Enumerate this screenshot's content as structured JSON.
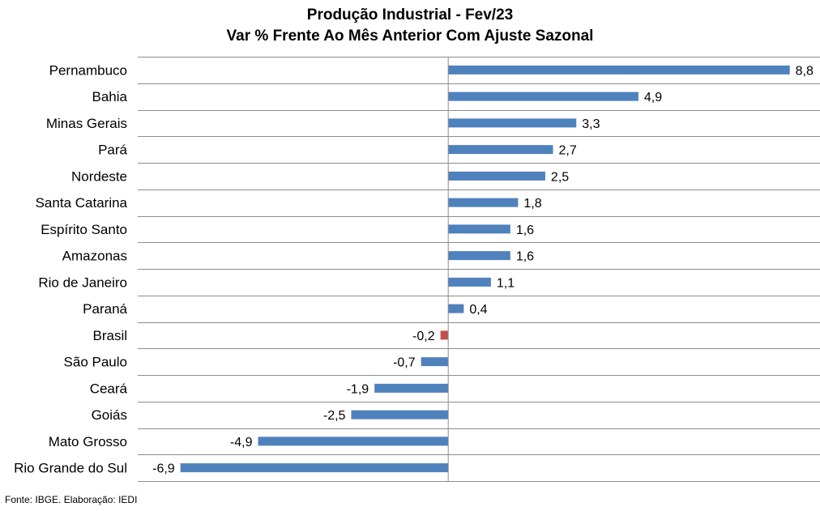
{
  "chart_data": {
    "type": "bar",
    "orientation": "horizontal",
    "title": "Produção Industrial - Fev/23",
    "subtitle": "Var % Frente Ao Mês Anterior Com Ajuste Sazonal",
    "categories": [
      "Pernambuco",
      "Bahia",
      "Minas Gerais",
      "Pará",
      "Nordeste",
      "Santa Catarina",
      "Espírito Santo",
      "Amazonas",
      "Rio de Janeiro",
      "Paraná",
      "Brasil",
      "São Paulo",
      "Ceará",
      "Goiás",
      "Mato Grosso",
      "Rio Grande do Sul"
    ],
    "values": [
      8.8,
      4.9,
      3.3,
      2.7,
      2.5,
      1.8,
      1.6,
      1.6,
      1.1,
      0.4,
      -0.2,
      -0.7,
      -1.9,
      -2.5,
      -4.9,
      -6.9
    ],
    "data_labels": [
      "8,8",
      "4,9",
      "3,3",
      "2,7",
      "2,5",
      "1,8",
      "1,6",
      "1,6",
      "1,1",
      "0,4",
      "-0,2",
      "-0,7",
      "-1,9",
      "-2,5",
      "-4,9",
      "-6,9"
    ],
    "bar_colors": [
      "#4f81bd",
      "#4f81bd",
      "#4f81bd",
      "#4f81bd",
      "#4f81bd",
      "#4f81bd",
      "#4f81bd",
      "#4f81bd",
      "#4f81bd",
      "#4f81bd",
      "#c0504d",
      "#4f81bd",
      "#4f81bd",
      "#4f81bd",
      "#4f81bd",
      "#4f81bd"
    ],
    "xlim": [
      -8.0,
      9.6
    ],
    "grid": "horizontal",
    "legend": "none",
    "source": "Fonte: IBGE. Elaboração: IEDI"
  }
}
